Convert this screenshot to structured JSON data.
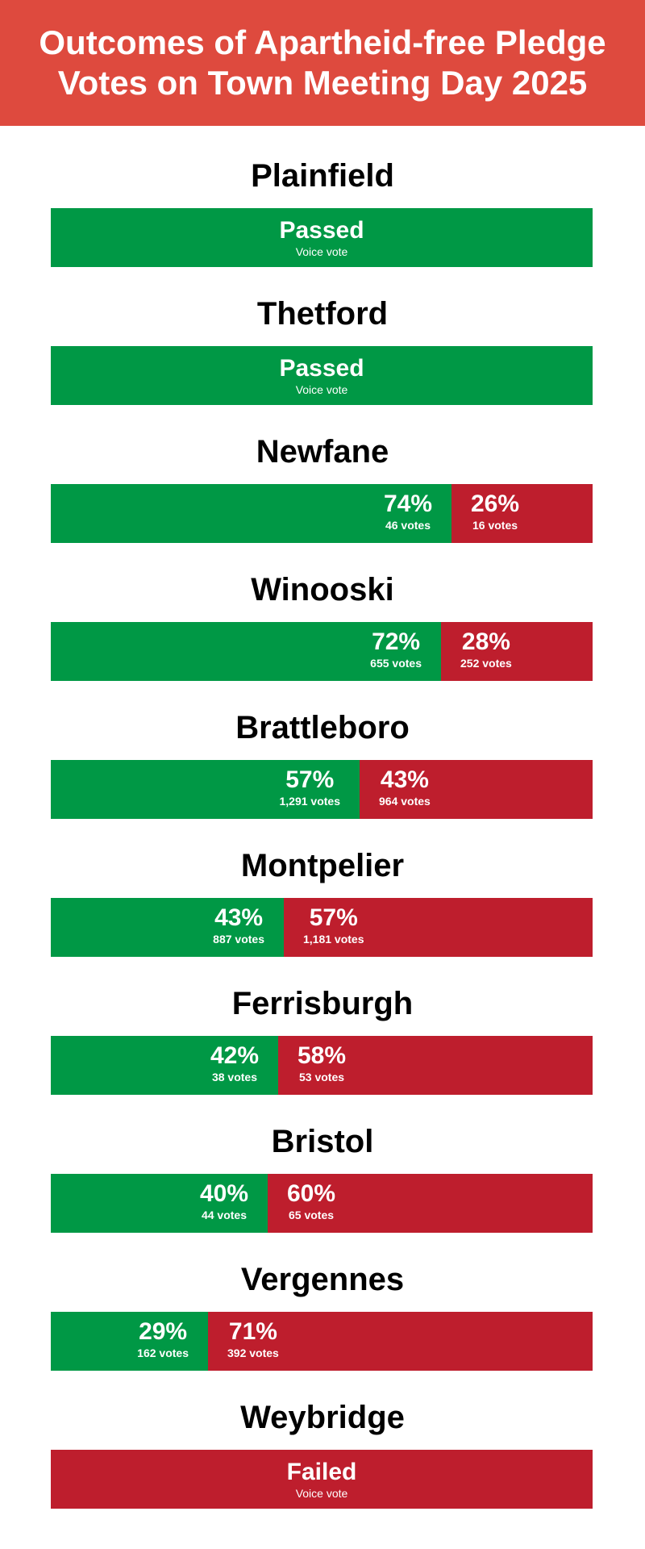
{
  "header": {
    "title_line1": "Outcomes of Apartheid-free Pledge",
    "title_line2": "Votes on Town Meeting Day 2025",
    "background": "#de4a3e"
  },
  "colors": {
    "yes": "#009845",
    "no": "#be1e2d"
  },
  "chart_data": {
    "type": "bar",
    "orientation": "horizontal-stacked-100",
    "title": "Outcomes of Apartheid-free Pledge Votes on Town Meeting Day 2025",
    "series": [
      {
        "name": "",
        "color": "#009845"
      },
      {
        "name": "",
        "color": "#be1e2d"
      }
    ],
    "towns": [
      {
        "name": "Plainfield",
        "result": "Passed",
        "method": "Voice vote"
      },
      {
        "name": "Thetford",
        "result": "Passed",
        "method": "Voice vote"
      },
      {
        "name": "Newfane",
        "yes_pct": 74,
        "no_pct": 26,
        "yes_pct_label": "74%",
        "no_pct_label": "26%",
        "yes_votes": "46 votes",
        "no_votes": "16 votes"
      },
      {
        "name": "Winooski",
        "yes_pct": 72,
        "no_pct": 28,
        "yes_pct_label": "72%",
        "no_pct_label": "28%",
        "yes_votes": "655 votes",
        "no_votes": "252 votes"
      },
      {
        "name": "Brattleboro",
        "yes_pct": 57,
        "no_pct": 43,
        "yes_pct_label": "57%",
        "no_pct_label": "43%",
        "yes_votes": "1,291 votes",
        "no_votes": "964 votes"
      },
      {
        "name": "Montpelier",
        "yes_pct": 43,
        "no_pct": 57,
        "yes_pct_label": "43%",
        "no_pct_label": "57%",
        "yes_votes": "887 votes",
        "no_votes": "1,181 votes"
      },
      {
        "name": "Ferrisburgh",
        "yes_pct": 42,
        "no_pct": 58,
        "yes_pct_label": "42%",
        "no_pct_label": "58%",
        "yes_votes": "38 votes",
        "no_votes": "53 votes"
      },
      {
        "name": "Bristol",
        "yes_pct": 40,
        "no_pct": 60,
        "yes_pct_label": "40%",
        "no_pct_label": "60%",
        "yes_votes": "44 votes",
        "no_votes": "65 votes"
      },
      {
        "name": "Vergennes",
        "yes_pct": 29,
        "no_pct": 71,
        "yes_pct_label": "29%",
        "no_pct_label": "71%",
        "yes_votes": "162 votes",
        "no_votes": "392 votes"
      },
      {
        "name": "Weybridge",
        "result": "Failed",
        "method": "Voice vote"
      }
    ]
  }
}
